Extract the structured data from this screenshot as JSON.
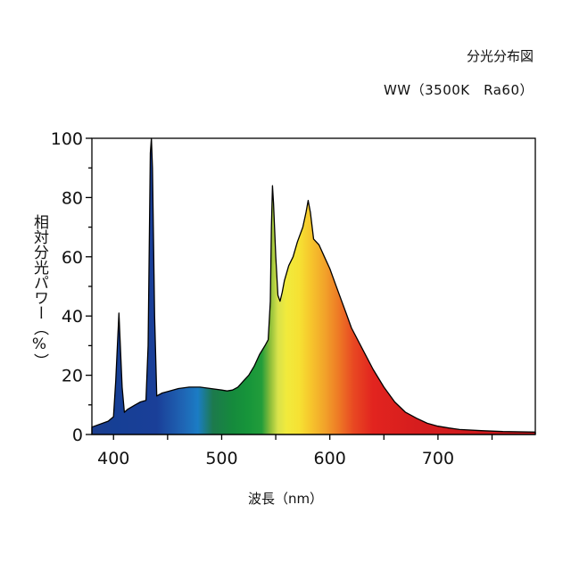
{
  "chart_data": {
    "type": "area",
    "title": "分光分布図",
    "subtitle": "WW（3500K　Ra60）",
    "xlabel": "波長（nm）",
    "ylabel": "相対分光パワー（%）",
    "xlim": [
      380,
      790
    ],
    "ylim": [
      0,
      100
    ],
    "x_ticks": [
      400,
      500,
      600,
      700
    ],
    "y_ticks": [
      0,
      20,
      40,
      60,
      80,
      100
    ],
    "grid": false,
    "fill": "visible-spectrum",
    "series": [
      {
        "x": [
          380,
          395,
          400,
          402,
          405,
          408,
          410,
          413,
          420,
          425,
          430,
          432,
          434,
          435,
          436,
          438,
          440,
          445,
          450,
          460,
          470,
          480,
          490,
          500,
          505,
          510,
          515,
          520,
          525,
          530,
          535,
          540,
          543,
          545,
          546,
          547,
          548,
          550,
          552,
          554,
          556,
          558,
          562,
          566,
          570,
          575,
          578,
          580,
          582,
          585,
          590,
          595,
          600,
          605,
          610,
          615,
          620,
          630,
          640,
          650,
          660,
          670,
          680,
          690,
          700,
          710,
          720,
          740,
          760,
          790
        ],
        "y": [
          2.5,
          4.5,
          6,
          18,
          41,
          16,
          7.5,
          8.5,
          10,
          11,
          11.5,
          30,
          95,
          100,
          90,
          40,
          13,
          14,
          14.5,
          15.5,
          16,
          16,
          15.5,
          15,
          14.7,
          15,
          16,
          18,
          20,
          23,
          27,
          30,
          32,
          45,
          70,
          84,
          78,
          60,
          47,
          45,
          48,
          52,
          57,
          60,
          65,
          70,
          75,
          79,
          75,
          66,
          64,
          60,
          56,
          51,
          46,
          41,
          36,
          29,
          22,
          16,
          11,
          7.5,
          5.5,
          3.8,
          2.8,
          2.2,
          1.7,
          1.3,
          1,
          0.8
        ]
      }
    ]
  }
}
